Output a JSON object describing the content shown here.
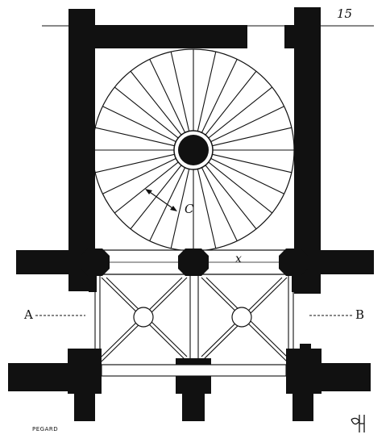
{
  "page_number": "15",
  "labels": {
    "section_left": "A",
    "section_right": "B",
    "dome": "C",
    "bay": "x"
  },
  "credit": "PEGARD",
  "colors": {
    "ink": "#111111",
    "paper": "#ffffff"
  }
}
